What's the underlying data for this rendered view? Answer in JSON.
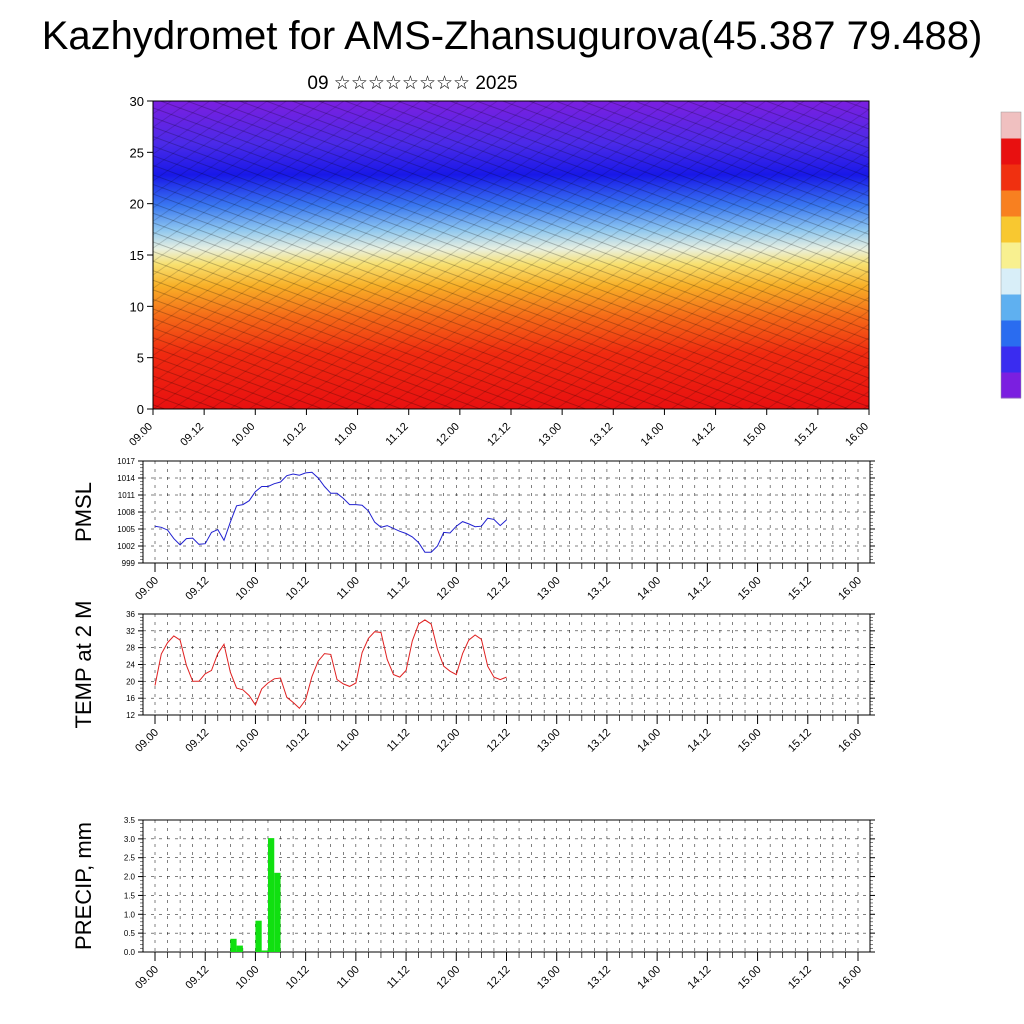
{
  "header": {
    "title": "Kazhydromet for AMS-Zhansugurova(45.387 79.488)",
    "subtitle": "09 ☆☆☆☆☆☆☆☆ 2025"
  },
  "time_ticks": [
    "09.00",
    "09.12",
    "10.00",
    "10.12",
    "11.00",
    "11.12",
    "12.00",
    "12.12",
    "13.00",
    "13.12",
    "14.00",
    "14.12",
    "15.00",
    "15.12",
    "16.00"
  ],
  "colorbar": {
    "colors": [
      "#7b1fe0",
      "#3a2cf0",
      "#2a6cf0",
      "#5fb0f0",
      "#d8eef8",
      "#f8f090",
      "#f8c830",
      "#f88020",
      "#f03010",
      "#e81010",
      "#f0c0c0"
    ]
  },
  "chart_data": [
    {
      "type": "heatmap",
      "name": "cross-section",
      "ylim": [
        0,
        30
      ],
      "yticks": [
        0,
        5,
        10,
        15,
        20,
        25,
        30
      ],
      "x": [
        "09.00",
        "09.12",
        "10.00",
        "10.12",
        "11.00",
        "11.12",
        "12.00",
        "12.12",
        "13.00",
        "13.12",
        "14.00",
        "14.12",
        "15.00",
        "15.12",
        "16.00"
      ],
      "grid": false
    },
    {
      "type": "line",
      "ylabel": "PMSL",
      "ylim": [
        999,
        1017
      ],
      "yticks": [
        999,
        1002,
        1005,
        1008,
        1011,
        1014,
        1017
      ],
      "color": "#2020d0",
      "x_step_hours": 3,
      "values": [
        1005.5,
        1005.3,
        1004.8,
        1003.3,
        1002.2,
        1003.3,
        1003.4,
        1002.3,
        1002.4,
        1004.4,
        1004.9,
        1003,
        1006.2,
        1009.1,
        1009.3,
        1010,
        1011.6,
        1012.5,
        1012.5,
        1013,
        1013.3,
        1014.4,
        1014.7,
        1014.5,
        1014.9,
        1015,
        1014,
        1012.5,
        1011.3,
        1011.3,
        1010.4,
        1009.3,
        1009.3,
        1009.2,
        1008.2,
        1006.2,
        1005.3,
        1005.6,
        1005.1,
        1004.6,
        1004.2,
        1003.6,
        1002.6,
        1000.9,
        1000.9,
        1002,
        1004.4,
        1004.3,
        1005.5,
        1006.3,
        1005.9,
        1005.4,
        1005.5,
        1006.9,
        1006.7,
        1005.6,
        1006.6
      ]
    },
    {
      "type": "line",
      "ylabel": "TEMP at 2 M",
      "ylim": [
        12,
        36
      ],
      "yticks": [
        12,
        16,
        20,
        24,
        28,
        32,
        36
      ],
      "color": "#e02020",
      "x_step_hours": 3,
      "values": [
        19,
        26.5,
        29.2,
        30.8,
        29.8,
        23.8,
        20,
        20,
        21.8,
        22.6,
        26.6,
        28.8,
        22.2,
        18.4,
        18,
        16.6,
        14.4,
        18.2,
        19.6,
        20.6,
        20.8,
        16.2,
        15,
        13.6,
        15.6,
        21.1,
        24.8,
        26.6,
        26.4,
        20.4,
        19.4,
        18.8,
        19.6,
        26.8,
        30.2,
        31.8,
        31.6,
        25.2,
        21.6,
        21,
        22.6,
        29.6,
        33.6,
        34.6,
        33.6,
        27.6,
        23.6,
        22.4,
        21.6,
        26.6,
        29.8,
        31,
        30,
        23.6,
        21,
        20.4,
        21
      ]
    },
    {
      "type": "bar",
      "ylabel": "PRECIP, mm",
      "ylim": [
        0,
        3.5
      ],
      "yticks": [
        0.0,
        0.5,
        1.0,
        1.5,
        2.0,
        2.5,
        3.0,
        3.5
      ],
      "color": "#10e010",
      "x_step_hours": 3,
      "values": [
        0,
        0,
        0,
        0,
        0,
        0,
        0,
        0,
        0,
        0,
        0,
        0,
        0.35,
        0.17,
        0,
        0,
        0.83,
        0.04,
        3.02,
        2.1,
        0,
        0,
        0,
        0,
        0,
        0,
        0,
        0,
        0,
        0,
        0,
        0,
        0,
        0,
        0,
        0,
        0,
        0,
        0,
        0,
        0,
        0,
        0,
        0,
        0,
        0,
        0,
        0,
        0,
        0,
        0,
        0,
        0,
        0,
        0,
        0,
        0
      ]
    }
  ]
}
